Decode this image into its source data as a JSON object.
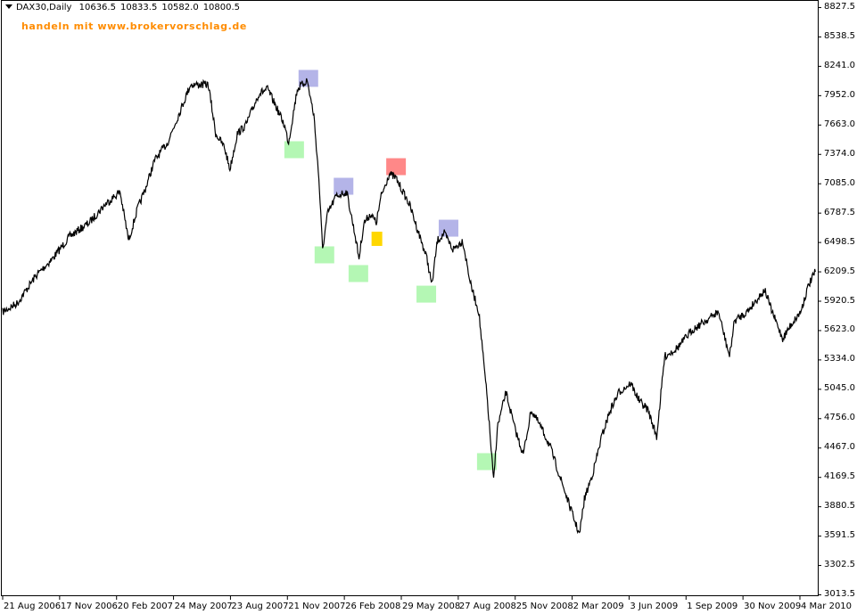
{
  "header": {
    "symbol": "DAX30,Daily",
    "open": "10636.5",
    "high": "10833.5",
    "low": "10582.0",
    "close": "10800.5"
  },
  "promo_text": "handeln mit www.brokervorschlag.de",
  "chart_data": {
    "type": "line",
    "title": "",
    "xlabel": "",
    "ylabel": "",
    "ylim": [
      3013.5,
      8827.5
    ],
    "grid": false,
    "line_color": "#000000",
    "y_ticks": [
      "8827.5",
      "8538.5",
      "8241.0",
      "7952.0",
      "7663.0",
      "7374.0",
      "7085.0",
      "6787.5",
      "6498.5",
      "6209.5",
      "5920.5",
      "5623.0",
      "5334.0",
      "5045.0",
      "4756.0",
      "4467.0",
      "4169.5",
      "3880.5",
      "3591.5",
      "3302.5",
      "3013.5"
    ],
    "x_ticks": [
      "21 Aug 2006",
      "17 Nov 2006",
      "20 Feb 2007",
      "24 May 2007",
      "23 Aug 2007",
      "21 Nov 2007",
      "26 Feb 2008",
      "29 May 2008",
      "27 Aug 2008",
      "25 Nov 2008",
      "2 Mar 2009",
      "3 Jun 2009",
      "1 Sep 2009",
      "30 Nov 2009",
      "4 Mar 2010"
    ],
    "series": [
      {
        "points": [
          [
            "2006-08-21",
            5810
          ],
          [
            "2006-09-14",
            5898
          ],
          [
            "2006-10-13",
            6163
          ],
          [
            "2006-11-10",
            6340
          ],
          [
            "2006-12-08",
            6560
          ],
          [
            "2007-01-08",
            6692
          ],
          [
            "2007-02-02",
            6869
          ],
          [
            "2007-02-27",
            7000
          ],
          [
            "2007-03-13",
            6516
          ],
          [
            "2007-03-27",
            6825
          ],
          [
            "2007-04-10",
            7045
          ],
          [
            "2007-04-24",
            7310
          ],
          [
            "2007-05-15",
            7486
          ],
          [
            "2007-06-07",
            7839
          ],
          [
            "2007-06-21",
            8060
          ],
          [
            "2007-07-04",
            8060
          ],
          [
            "2007-07-20",
            8060
          ],
          [
            "2007-08-01",
            7575
          ],
          [
            "2007-08-15",
            7442
          ],
          [
            "2007-08-24",
            7222
          ],
          [
            "2007-09-05",
            7575
          ],
          [
            "2007-09-19",
            7663
          ],
          [
            "2007-10-10",
            7972
          ],
          [
            "2007-10-24",
            8016
          ],
          [
            "2007-11-07",
            7839
          ],
          [
            "2007-11-20",
            7663
          ],
          [
            "2007-11-27",
            7486
          ],
          [
            "2007-12-11",
            8016
          ],
          [
            "2007-12-27",
            8104
          ],
          [
            "2008-01-07",
            7751
          ],
          [
            "2008-01-15",
            7133
          ],
          [
            "2008-01-21",
            6428
          ],
          [
            "2008-01-29",
            6780
          ],
          [
            "2008-02-12",
            6957
          ],
          [
            "2008-02-29",
            7000
          ],
          [
            "2008-03-14",
            6560
          ],
          [
            "2008-03-20",
            6340
          ],
          [
            "2008-03-28",
            6692
          ],
          [
            "2008-04-08",
            6780
          ],
          [
            "2008-04-17",
            6692
          ],
          [
            "2008-04-25",
            6957
          ],
          [
            "2008-05-08",
            7178
          ],
          [
            "2008-05-19",
            7133
          ],
          [
            "2008-06-10",
            6869
          ],
          [
            "2008-06-24",
            6604
          ],
          [
            "2008-07-08",
            6340
          ],
          [
            "2008-07-16",
            6075
          ],
          [
            "2008-07-25",
            6516
          ],
          [
            "2008-08-05",
            6586
          ],
          [
            "2008-08-19",
            6428
          ],
          [
            "2008-09-04",
            6516
          ],
          [
            "2008-09-17",
            6075
          ],
          [
            "2008-09-30",
            5810
          ],
          [
            "2008-10-07",
            5369
          ],
          [
            "2008-10-14",
            4928
          ],
          [
            "2008-10-24",
            4134
          ],
          [
            "2008-10-30",
            4663
          ],
          [
            "2008-11-13",
            5016
          ],
          [
            "2008-11-27",
            4663
          ],
          [
            "2008-12-11",
            4398
          ],
          [
            "2008-12-24",
            4840
          ],
          [
            "2009-01-09",
            4663
          ],
          [
            "2009-01-23",
            4486
          ],
          [
            "2009-02-06",
            4222
          ],
          [
            "2009-03-02",
            3781
          ],
          [
            "2009-03-12",
            3604
          ],
          [
            "2009-03-20",
            3957
          ],
          [
            "2009-04-03",
            4222
          ],
          [
            "2009-04-17",
            4575
          ],
          [
            "2009-05-01",
            4840
          ],
          [
            "2009-05-15",
            5016
          ],
          [
            "2009-06-03",
            5104
          ],
          [
            "2009-06-17",
            4928
          ],
          [
            "2009-07-01",
            4840
          ],
          [
            "2009-07-15",
            4575
          ],
          [
            "2009-07-28",
            5369
          ],
          [
            "2009-08-18",
            5457
          ],
          [
            "2009-09-11",
            5634
          ],
          [
            "2009-10-02",
            5722
          ],
          [
            "2009-10-23",
            5810
          ],
          [
            "2009-11-10",
            5369
          ],
          [
            "2009-11-18",
            5722
          ],
          [
            "2009-12-08",
            5810
          ],
          [
            "2010-01-06",
            6030
          ],
          [
            "2010-01-18",
            5810
          ],
          [
            "2010-02-04",
            5545
          ],
          [
            "2010-02-17",
            5678
          ],
          [
            "2010-03-05",
            5810
          ],
          [
            "2010-03-18",
            6075
          ],
          [
            "2010-03-29",
            6207
          ]
        ]
      }
    ],
    "markers": [
      {
        "date": "2007-12-29",
        "price": 8122,
        "color": "#b4b4e8"
      },
      {
        "date": "2007-12-06",
        "price": 7416,
        "color": "#b4f7b4"
      },
      {
        "date": "2008-01-24",
        "price": 6375,
        "color": "#b4f7b4"
      },
      {
        "date": "2008-02-24",
        "price": 7054,
        "color": "#b4b4e8"
      },
      {
        "date": "2008-03-19",
        "price": 6190,
        "color": "#b4f7b4"
      },
      {
        "date": "2008-04-18",
        "price": 6534,
        "color": "#ffd700",
        "small": true
      },
      {
        "date": "2008-05-19",
        "price": 7248,
        "color": "#ff8888"
      },
      {
        "date": "2008-08-12",
        "price": 6639,
        "color": "#b4b4e8"
      },
      {
        "date": "2008-07-07",
        "price": 5986,
        "color": "#b4f7b4"
      },
      {
        "date": "2008-10-13",
        "price": 4328,
        "color": "#b4f7b4"
      }
    ]
  }
}
